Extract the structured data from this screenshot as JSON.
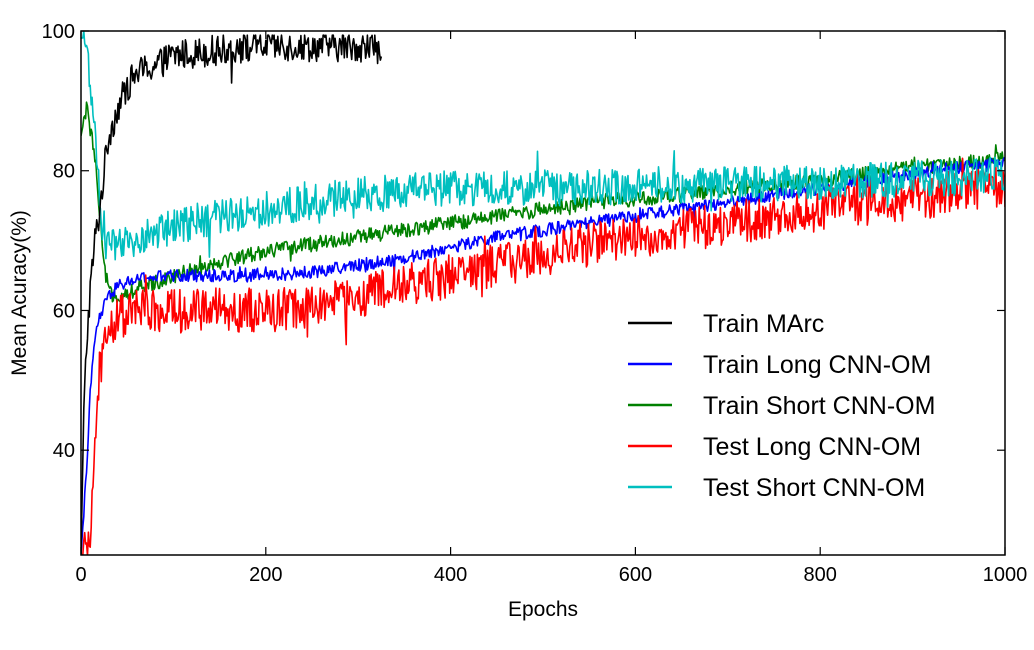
{
  "chart_data": {
    "type": "line",
    "title": "",
    "xlabel": "Epochs",
    "ylabel": "Mean Acuracy(%)",
    "xlim": [
      0,
      1000
    ],
    "ylim": [
      25,
      100
    ],
    "xticks": [
      0,
      200,
      400,
      600,
      800,
      1000
    ],
    "yticks": [
      40,
      60,
      80,
      100
    ],
    "grid": false,
    "legend_position": "lower-right",
    "series": [
      {
        "name": "Train MArc",
        "color": "#000000",
        "noise": 2.2,
        "x": [
          0,
          3,
          6,
          10,
          15,
          20,
          25,
          30,
          40,
          50,
          60,
          80,
          100,
          130,
          160,
          200,
          250,
          300,
          325
        ],
        "y": [
          25,
          45,
          55,
          63,
          70,
          74,
          80,
          85,
          89,
          92,
          94,
          95,
          96.5,
          97,
          97.5,
          97.8,
          97.8,
          97.8,
          97.5
        ]
      },
      {
        "name": "Train Long CNN-OM",
        "color": "#0000ff",
        "noise": 0.9,
        "x": [
          0,
          5,
          10,
          15,
          20,
          30,
          40,
          60,
          100,
          150,
          200,
          250,
          300,
          350,
          400,
          450,
          500,
          550,
          600,
          650,
          700,
          750,
          800,
          850,
          900,
          950,
          1000
        ],
        "y": [
          25,
          35,
          48,
          56,
          59,
          62,
          63.5,
          64.5,
          65,
          65,
          65,
          65.5,
          66.5,
          67.5,
          69,
          70.5,
          71.5,
          72.5,
          73.5,
          74.5,
          75.5,
          76.5,
          77.5,
          78.5,
          79.5,
          80.5,
          81
        ]
      },
      {
        "name": "Train Short CNN-OM",
        "color": "#008000",
        "noise": 1.1,
        "x": [
          0,
          3,
          6,
          10,
          15,
          20,
          25,
          30,
          40,
          60,
          100,
          150,
          200,
          250,
          300,
          350,
          400,
          450,
          500,
          550,
          600,
          650,
          700,
          750,
          800,
          850,
          900,
          950,
          1000
        ],
        "y": [
          85,
          87,
          89,
          86,
          82,
          74,
          66,
          63,
          62,
          63,
          65,
          67,
          68.5,
          69.5,
          70.5,
          71.5,
          72.5,
          73.5,
          74.5,
          75.5,
          76,
          76.5,
          77.5,
          78,
          78.5,
          79.5,
          80.5,
          81,
          82
        ]
      },
      {
        "name": "Test Long CNN-OM",
        "color": "#ff0000",
        "noise": 3.2,
        "x": [
          0,
          5,
          10,
          15,
          20,
          30,
          40,
          60,
          100,
          150,
          200,
          250,
          300,
          350,
          400,
          450,
          500,
          550,
          600,
          650,
          700,
          750,
          800,
          850,
          900,
          950,
          1000
        ],
        "y": [
          25,
          25,
          28,
          40,
          52,
          57,
          59,
          60,
          60,
          60,
          60,
          60.5,
          62,
          63.5,
          65,
          66.5,
          68,
          69.5,
          70.5,
          71.5,
          72.5,
          73.5,
          74.5,
          75.5,
          76,
          77,
          77.5
        ]
      },
      {
        "name": "Test Short CNN-OM",
        "color": "#00bfbf",
        "noise": 2.6,
        "x": [
          0,
          3,
          6,
          10,
          15,
          20,
          25,
          30,
          40,
          60,
          100,
          150,
          200,
          250,
          300,
          350,
          400,
          450,
          500,
          550,
          600,
          650,
          700,
          750,
          800,
          850,
          900,
          950,
          1000
        ],
        "y": [
          99,
          99,
          98,
          93,
          85,
          76,
          70,
          69,
          69,
          70,
          72,
          73.5,
          74.5,
          75.5,
          76.5,
          77,
          77.5,
          77.5,
          77.5,
          77.5,
          78,
          78,
          78,
          78,
          78.5,
          78.5,
          79,
          79,
          79.5
        ]
      }
    ]
  }
}
